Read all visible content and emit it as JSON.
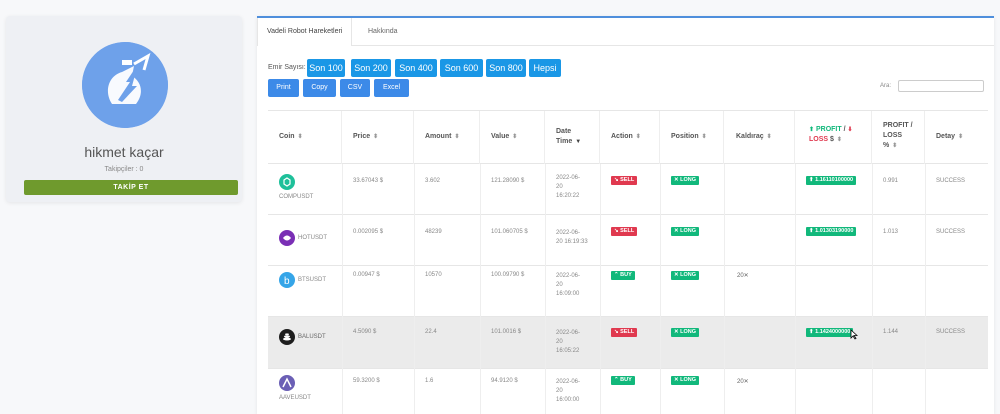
{
  "profile": {
    "name": "hikmet kaçar",
    "followers": "Takipçiler : 0",
    "follow_button": "TAKİP ET"
  },
  "tabs": [
    "Vadeli Robot Hareketleri",
    "Hakkında"
  ],
  "filter": {
    "label": "Emir Sayısı:",
    "buttons": [
      "Son 100",
      "Son 200",
      "Son 400",
      "Son 600",
      "Son 800",
      "Hepsi"
    ]
  },
  "export_buttons": [
    "Print",
    "Copy",
    "CSV",
    "Excel"
  ],
  "search": {
    "label": "Ara:"
  },
  "table": {
    "headers": {
      "coin": "Coin",
      "price": "Price",
      "amount": "Amount",
      "value": "Value",
      "date_1": "Date",
      "date_2": "Time",
      "action": "Action",
      "position": "Position",
      "leverage": "Kaldıraç",
      "pl_profit": "PROFIT",
      "pl_slash": "/",
      "pl_loss": "LOSS",
      "pl_unit": "$",
      "pct_1": "PROFIT /",
      "pct_2": "LOSS",
      "pct_3": "%",
      "detail": "Detay"
    },
    "rows": [
      {
        "coin": "COMPUSDT",
        "price": "33.67043 $",
        "amount": "3.602",
        "value": "121.28090 $",
        "date": [
          "2022-06-",
          "20",
          "16:20:22"
        ],
        "action": "SELL",
        "position": "LONG",
        "leverage": "",
        "pl": "1.16110100000",
        "pct": "0.991",
        "detail": "SUCCESS"
      },
      {
        "coin": "HOTUSDT",
        "price": "0.002095 $",
        "amount": "48239",
        "value": "101.060705 $",
        "date": [
          "2022-06-",
          "20 16:19:33",
          ""
        ],
        "action": "SELL",
        "position": "LONG",
        "leverage": "",
        "pl": "1.01303190000",
        "pct": "1.013",
        "detail": "SUCCESS"
      },
      {
        "coin": "BTSUSDT",
        "price": "0.00947 $",
        "amount": "10570",
        "value": "100.09790 $",
        "date": [
          "2022-06-",
          "20",
          "16:09:00"
        ],
        "action": "BUY",
        "position": "LONG",
        "leverage": "20✕",
        "pl": "",
        "pct": "",
        "detail": ""
      },
      {
        "coin": "BALUSDT",
        "price": "4.5090 $",
        "amount": "22.4",
        "value": "101.0016 $",
        "date": [
          "2022-06-",
          "20",
          "16:05:22"
        ],
        "action": "SELL",
        "position": "LONG",
        "leverage": "",
        "pl": "1.1424000000",
        "pct": "1.144",
        "detail": "SUCCESS"
      },
      {
        "coin": "AAVEUSDT",
        "price": "59.3200 $",
        "amount": "1.6",
        "value": "94.9120 $",
        "date": [
          "2022-06-",
          "20",
          "16:00:00"
        ],
        "action": "BUY",
        "position": "LONG",
        "leverage": "20✕",
        "pl": "",
        "pct": "",
        "detail": ""
      }
    ]
  },
  "colors": {
    "accent_blue": "#1a97e6",
    "follow_green": "#6f9a2d",
    "sell_red": "#e0394f",
    "buy_green": "#11b87b"
  }
}
